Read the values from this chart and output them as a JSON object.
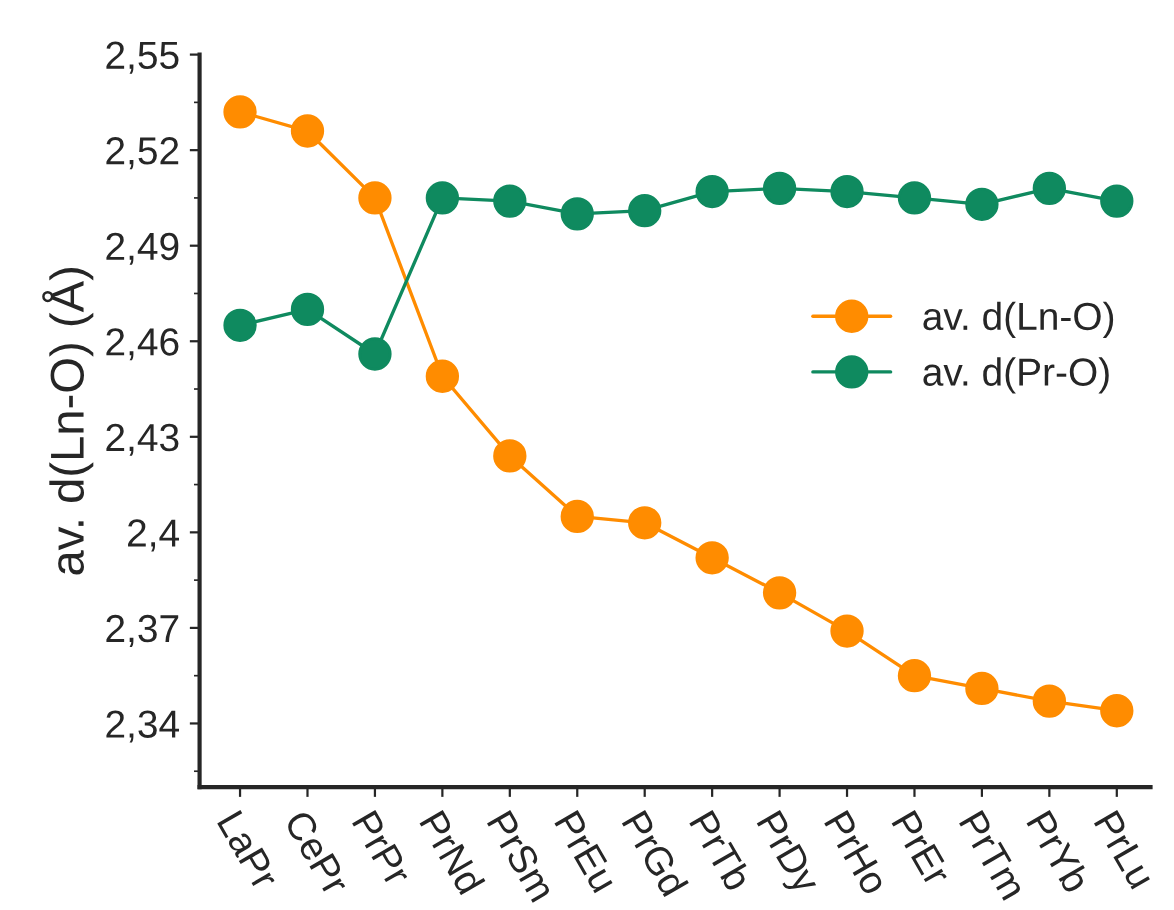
{
  "chart_data": {
    "type": "line",
    "ylabel": "av. d(Ln-O) (Å)",
    "categories": [
      "LaPr",
      "CePr",
      "PrPr",
      "PrNd",
      "PrSm",
      "PrEu",
      "PrGd",
      "PrTb",
      "PrDy",
      "PrHo",
      "PrEr",
      "PrTm",
      "PrYb",
      "PrLu"
    ],
    "series": [
      {
        "name": "av. d(Ln-O)",
        "color": "#ff8c00",
        "values": [
          2.532,
          2.526,
          2.505,
          2.449,
          2.424,
          2.405,
          2.403,
          2.392,
          2.381,
          2.369,
          2.355,
          2.351,
          2.347,
          2.344
        ]
      },
      {
        "name": "av. d(Pr-O)",
        "color": "#0f8a5f",
        "values": [
          2.465,
          2.47,
          2.456,
          2.505,
          2.504,
          2.5,
          2.501,
          2.507,
          2.508,
          2.507,
          2.505,
          2.503,
          2.508,
          2.504
        ]
      }
    ],
    "ylim": [
      2.32,
      2.55
    ],
    "yticks": [
      {
        "value": 2.34,
        "label": "2,34"
      },
      {
        "value": 2.37,
        "label": "2,37"
      },
      {
        "value": 2.4,
        "label": "2,4"
      },
      {
        "value": 2.43,
        "label": "2,43"
      },
      {
        "value": 2.46,
        "label": "2,46"
      },
      {
        "value": 2.49,
        "label": "2,49"
      },
      {
        "value": 2.52,
        "label": "2,52"
      },
      {
        "value": 2.55,
        "label": "2,55"
      }
    ],
    "marker": "circle",
    "line_style": "solid",
    "grid": false,
    "legend": "right"
  }
}
